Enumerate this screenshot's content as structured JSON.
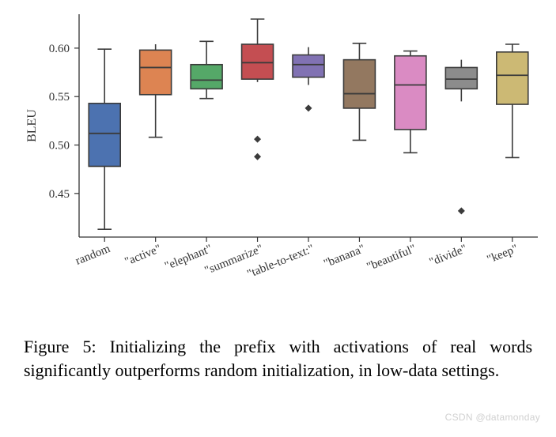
{
  "chart": {
    "type": "boxplot",
    "ylabel": "BLEU",
    "ylim": [
      0.405,
      0.635
    ],
    "yticks": [
      0.45,
      0.5,
      0.55,
      0.6
    ],
    "ytick_labels": [
      "0.45",
      "0.50",
      "0.55",
      "0.60"
    ],
    "categories": [
      "random",
      "\"active\"",
      "\"elephant\"",
      "\"summarize\"",
      "\"table-to-text:\"",
      "\"banana\"",
      "\"beautiful\"",
      "\"divide\"",
      "\"keep\""
    ],
    "boxes": [
      {
        "q1": 0.478,
        "median": 0.512,
        "q3": 0.543,
        "whisker_low": 0.413,
        "whisker_high": 0.599,
        "outliers": [],
        "fill": "#4c72b0",
        "cap": "both"
      },
      {
        "q1": 0.552,
        "median": 0.58,
        "q3": 0.598,
        "whisker_low": 0.508,
        "whisker_high": 0.604,
        "outliers": [],
        "fill": "#dd8452",
        "cap": "bottom"
      },
      {
        "q1": 0.558,
        "median": 0.567,
        "q3": 0.583,
        "whisker_low": 0.548,
        "whisker_high": 0.607,
        "outliers": [],
        "fill": "#55a868",
        "cap": "both"
      },
      {
        "q1": 0.568,
        "median": 0.585,
        "q3": 0.604,
        "whisker_low": 0.565,
        "whisker_high": 0.63,
        "outliers": [
          0.506,
          0.488
        ],
        "fill": "#c44e52",
        "cap": "top"
      },
      {
        "q1": 0.57,
        "median": 0.583,
        "q3": 0.593,
        "whisker_low": 0.562,
        "whisker_high": 0.601,
        "outliers": [
          0.538
        ],
        "fill": "#8172b3",
        "cap": "none"
      },
      {
        "q1": 0.538,
        "median": 0.553,
        "q3": 0.588,
        "whisker_low": 0.505,
        "whisker_high": 0.605,
        "outliers": [],
        "fill": "#937860",
        "cap": "both"
      },
      {
        "q1": 0.516,
        "median": 0.562,
        "q3": 0.592,
        "whisker_low": 0.492,
        "whisker_high": 0.597,
        "outliers": [],
        "fill": "#da8bc3",
        "cap": "both"
      },
      {
        "q1": 0.558,
        "median": 0.568,
        "q3": 0.58,
        "whisker_low": 0.545,
        "whisker_high": 0.588,
        "outliers": [
          0.432
        ],
        "fill": "#8c8c8c",
        "cap": "none"
      },
      {
        "q1": 0.542,
        "median": 0.572,
        "q3": 0.596,
        "whisker_low": 0.487,
        "whisker_high": 0.604,
        "outliers": [],
        "fill": "#ccb974",
        "cap": "both"
      }
    ],
    "background_color": "#ffffff",
    "spine_color": "#333333",
    "grid_color": "none",
    "box_border_color": "#3b3b3b",
    "whisker_color": "#3b3b3b",
    "outlier_color": "#3b3b3b",
    "box_width": 0.62,
    "label_fontsize": 15,
    "ylabel_fontsize": 16,
    "xlabel_rotation": 22
  },
  "caption": {
    "label": "Figure 5:",
    "text": "Initializing the prefix with activations of real words significantly outperforms random initialization, in low-data settings."
  },
  "watermark": "CSDN @datamonday"
}
